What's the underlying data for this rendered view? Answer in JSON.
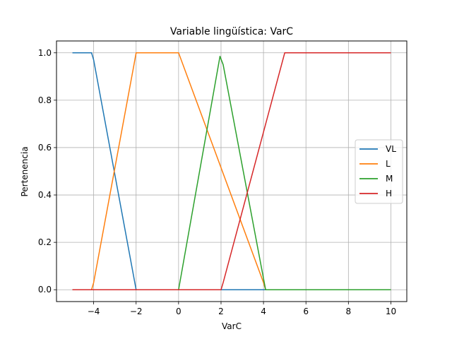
{
  "chart_data": {
    "type": "line",
    "title": "Variable lingüística: VarC",
    "xlabel": "VarC",
    "ylabel": "Pertenencia",
    "xlim": [
      -5.75,
      10.75
    ],
    "ylim": [
      -0.05,
      1.05
    ],
    "xticks": [
      -4,
      -2,
      0,
      2,
      4,
      6,
      8,
      10
    ],
    "xtick_labels": [
      "−4",
      "−2",
      "0",
      "2",
      "4",
      "6",
      "8",
      "10"
    ],
    "yticks": [
      0.0,
      0.2,
      0.4,
      0.6,
      0.8,
      1.0
    ],
    "ytick_labels": [
      "0.0",
      "0.2",
      "0.4",
      "0.6",
      "0.8",
      "1.0"
    ],
    "grid": true,
    "legend_position": "center-right",
    "series": [
      {
        "name": "VL",
        "color": "#1f77b4",
        "x": [
          -5,
          -4.1,
          -4,
          -2,
          10
        ],
        "y": [
          1,
          1,
          0.97,
          0,
          0
        ]
      },
      {
        "name": "L",
        "color": "#ff7f0e",
        "x": [
          -5,
          -4.1,
          -4,
          -2.1,
          -2,
          0,
          4,
          4.1,
          10
        ],
        "y": [
          0,
          0,
          0.03,
          0.95,
          1,
          1,
          0.03,
          0,
          0
        ]
      },
      {
        "name": "M",
        "color": "#2ca02c",
        "x": [
          -5,
          0,
          1.95,
          2.1,
          4.1,
          10
        ],
        "y": [
          0,
          0,
          0.985,
          0.95,
          0,
          0
        ]
      },
      {
        "name": "H",
        "color": "#d62728",
        "x": [
          -5,
          2,
          2.1,
          5,
          10
        ],
        "y": [
          0,
          0,
          0.03,
          1,
          1
        ]
      }
    ]
  }
}
